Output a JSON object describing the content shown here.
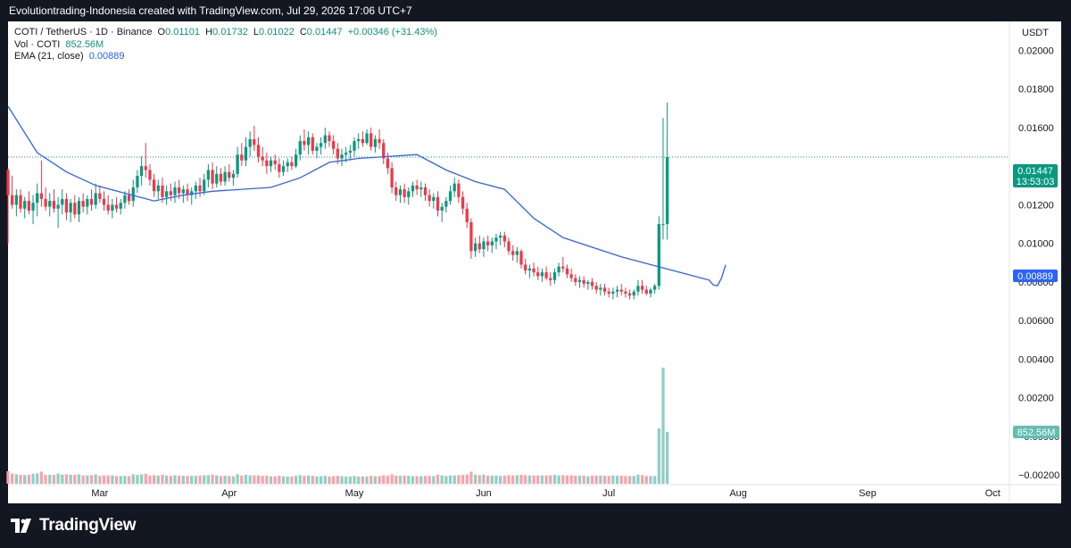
{
  "header": {
    "attribution": "Evolutiontrading-Indonesia created with TradingView.com, Jul 29, 2026 17:06 UTC+7"
  },
  "legend": {
    "symbol": "COTI / TetherUS · 1D · Binance",
    "o_label": "O",
    "o_value": "0.01101",
    "h_label": "H",
    "h_value": "0.01732",
    "l_label": "L",
    "l_value": "0.01022",
    "c_label": "C",
    "c_value": "0.01447",
    "change": "+0.00346 (+31.43%)",
    "vol_label": "Vol · COTI",
    "vol_value": "852.56M",
    "ema_label": "EMA (21, close)",
    "ema_value": "0.00889"
  },
  "price_axis": {
    "currency": "USDT",
    "ticks": [
      "0.02000",
      "0.01800",
      "0.01600",
      "0.01200",
      "0.01000",
      "0.00800",
      "0.00600",
      "0.00400",
      "0.00200",
      "−0.00000",
      "−0.00200"
    ]
  },
  "badges": {
    "price": "0.01447",
    "countdown": "13:53:03",
    "ema": "0.00889",
    "volume": "852.56M"
  },
  "time_axis": {
    "labels": [
      "Mar",
      "Apr",
      "May",
      "Jun",
      "Jul",
      "Aug",
      "Sep",
      "Oct"
    ]
  },
  "brand": {
    "name": "TradingView"
  },
  "colors": {
    "up": "#089981",
    "down": "#f23645",
    "ema": "#2962ff",
    "vol_up": "#8fcfc4",
    "vol_down": "#f8a3aa",
    "background": "#131722"
  },
  "chart_data": {
    "type": "candlestick",
    "symbol": "COTI / TetherUS",
    "interval": "1D",
    "exchange": "Binance",
    "y_range": [
      -0.0025,
      0.0215
    ],
    "x_range": [
      "2026-02-07",
      "2026-10-05"
    ],
    "series": [
      {
        "name": "EMA (21, close)",
        "type": "line",
        "points": [
          [
            "2026-02-07",
            0.0171
          ],
          [
            "2026-02-14",
            0.0147
          ],
          [
            "2026-02-21",
            0.0137
          ],
          [
            "2026-02-28",
            0.013
          ],
          [
            "2026-03-07",
            0.0126
          ],
          [
            "2026-03-14",
            0.0122
          ],
          [
            "2026-03-21",
            0.0125
          ],
          [
            "2026-03-28",
            0.0127
          ],
          [
            "2026-04-04",
            0.0128
          ],
          [
            "2026-04-11",
            0.0129
          ],
          [
            "2026-04-18",
            0.0134
          ],
          [
            "2026-04-25",
            0.0142
          ],
          [
            "2026-05-02",
            0.0144
          ],
          [
            "2026-05-09",
            0.0145
          ],
          [
            "2026-05-16",
            0.0146
          ],
          [
            "2026-05-23",
            0.0138
          ],
          [
            "2026-05-30",
            0.0132
          ],
          [
            "2026-06-06",
            0.0128
          ],
          [
            "2026-06-13",
            0.0113
          ],
          [
            "2026-06-20",
            0.0103
          ],
          [
            "2026-06-27",
            0.0098
          ],
          [
            "2026-07-04",
            0.0093
          ],
          [
            "2026-07-11",
            0.0089
          ],
          [
            "2026-07-18",
            0.0085
          ],
          [
            "2026-07-25",
            0.0081
          ],
          [
            "2026-07-26",
            0.00785
          ],
          [
            "2026-07-27",
            0.0078
          ],
          [
            "2026-07-28",
            0.0082
          ],
          [
            "2026-07-29",
            0.00889
          ]
        ]
      },
      {
        "name": "Vol · COTI",
        "type": "bar",
        "last": 852.56
      }
    ],
    "candles": [
      [
        "2026-02-07",
        0.0138,
        0.0139,
        0.01,
        0.0125
      ],
      [
        "2026-02-08",
        0.0125,
        0.0135,
        0.0118,
        0.012
      ],
      [
        "2026-02-09",
        0.012,
        0.0128,
        0.0114,
        0.0125
      ],
      [
        "2026-02-10",
        0.0125,
        0.0128,
        0.0116,
        0.0118
      ],
      [
        "2026-02-11",
        0.0118,
        0.0124,
        0.0113,
        0.0122
      ],
      [
        "2026-02-12",
        0.0122,
        0.0127,
        0.0115,
        0.0117
      ],
      [
        "2026-02-13",
        0.0117,
        0.0125,
        0.011,
        0.0121
      ],
      [
        "2026-02-14",
        0.0121,
        0.0131,
        0.0114,
        0.0126
      ],
      [
        "2026-02-15",
        0.0126,
        0.0143,
        0.0119,
        0.0123
      ],
      [
        "2026-02-16",
        0.0123,
        0.0129,
        0.0117,
        0.0119
      ],
      [
        "2026-02-17",
        0.0119,
        0.0126,
        0.0114,
        0.0122
      ],
      [
        "2026-02-18",
        0.0122,
        0.0128,
        0.0116,
        0.0118
      ],
      [
        "2026-02-19",
        0.0118,
        0.0124,
        0.0108,
        0.012
      ],
      [
        "2026-02-20",
        0.012,
        0.0128,
        0.0115,
        0.0123
      ],
      [
        "2026-02-21",
        0.0123,
        0.0126,
        0.0112,
        0.0116
      ],
      [
        "2026-02-22",
        0.0116,
        0.0123,
        0.0111,
        0.0121
      ],
      [
        "2026-02-23",
        0.0121,
        0.0125,
        0.0113,
        0.0115
      ],
      [
        "2026-02-24",
        0.0115,
        0.0124,
        0.0111,
        0.0122
      ],
      [
        "2026-02-25",
        0.0122,
        0.0126,
        0.0116,
        0.0119
      ],
      [
        "2026-02-26",
        0.0119,
        0.0125,
        0.0115,
        0.0123
      ],
      [
        "2026-02-27",
        0.0123,
        0.0128,
        0.0117,
        0.012
      ],
      [
        "2026-02-28",
        0.012,
        0.0131,
        0.0118,
        0.0126
      ],
      [
        "2026-03-01",
        0.0126,
        0.013,
        0.0121,
        0.0123
      ],
      [
        "2026-03-02",
        0.0123,
        0.0127,
        0.0117,
        0.012
      ],
      [
        "2026-03-03",
        0.012,
        0.0125,
        0.0115,
        0.0117
      ],
      [
        "2026-03-04",
        0.0117,
        0.0123,
        0.0113,
        0.012
      ],
      [
        "2026-03-05",
        0.012,
        0.0124,
        0.0116,
        0.0118
      ],
      [
        "2026-03-06",
        0.0118,
        0.0123,
        0.0115,
        0.0121
      ],
      [
        "2026-03-07",
        0.0121,
        0.0127,
        0.0118,
        0.0125
      ],
      [
        "2026-03-08",
        0.0125,
        0.0128,
        0.012,
        0.0122
      ],
      [
        "2026-03-09",
        0.0122,
        0.0133,
        0.0119,
        0.0129
      ],
      [
        "2026-03-10",
        0.0129,
        0.0138,
        0.0126,
        0.0135
      ],
      [
        "2026-03-11",
        0.0135,
        0.0145,
        0.013,
        0.014
      ],
      [
        "2026-03-12",
        0.014,
        0.0152,
        0.0134,
        0.0138
      ],
      [
        "2026-03-13",
        0.0138,
        0.0141,
        0.013,
        0.0133
      ],
      [
        "2026-03-14",
        0.0133,
        0.0136,
        0.0124,
        0.0127
      ],
      [
        "2026-03-15",
        0.0127,
        0.0133,
        0.0123,
        0.013
      ],
      [
        "2026-03-16",
        0.013,
        0.0134,
        0.0121,
        0.0124
      ],
      [
        "2026-03-17",
        0.0124,
        0.013,
        0.012,
        0.0127
      ],
      [
        "2026-03-18",
        0.0127,
        0.0131,
        0.0122,
        0.0125
      ],
      [
        "2026-03-19",
        0.0125,
        0.0132,
        0.0121,
        0.0129
      ],
      [
        "2026-03-20",
        0.0129,
        0.0133,
        0.0123,
        0.0126
      ],
      [
        "2026-03-21",
        0.0126,
        0.013,
        0.0121,
        0.0128
      ],
      [
        "2026-03-22",
        0.0128,
        0.0131,
        0.0122,
        0.0125
      ],
      [
        "2026-03-23",
        0.0125,
        0.0129,
        0.012,
        0.0127
      ],
      [
        "2026-03-24",
        0.0127,
        0.0132,
        0.0123,
        0.013
      ],
      [
        "2026-03-25",
        0.013,
        0.0134,
        0.0124,
        0.0127
      ],
      [
        "2026-03-26",
        0.0127,
        0.0136,
        0.0125,
        0.0133
      ],
      [
        "2026-03-27",
        0.0133,
        0.0141,
        0.0129,
        0.0138
      ],
      [
        "2026-03-28",
        0.0138,
        0.0142,
        0.0128,
        0.0131
      ],
      [
        "2026-03-29",
        0.0131,
        0.014,
        0.0129,
        0.0136
      ],
      [
        "2026-03-30",
        0.0136,
        0.0139,
        0.013,
        0.0132
      ],
      [
        "2026-03-31",
        0.0132,
        0.014,
        0.013,
        0.0137
      ],
      [
        "2026-04-01",
        0.0137,
        0.0141,
        0.0132,
        0.0134
      ],
      [
        "2026-04-02",
        0.0134,
        0.0138,
        0.013,
        0.0136
      ],
      [
        "2026-04-03",
        0.0136,
        0.015,
        0.0134,
        0.0146
      ],
      [
        "2026-04-04",
        0.0146,
        0.0152,
        0.014,
        0.0143
      ],
      [
        "2026-04-05",
        0.0143,
        0.0155,
        0.014,
        0.015
      ],
      [
        "2026-04-06",
        0.015,
        0.0158,
        0.0145,
        0.0154
      ],
      [
        "2026-04-07",
        0.0154,
        0.0161,
        0.0148,
        0.0151
      ],
      [
        "2026-04-08",
        0.0151,
        0.0155,
        0.0142,
        0.0145
      ],
      [
        "2026-04-09",
        0.0145,
        0.015,
        0.014,
        0.0143
      ],
      [
        "2026-04-10",
        0.0143,
        0.0147,
        0.0136,
        0.014
      ],
      [
        "2026-04-11",
        0.014,
        0.0145,
        0.0137,
        0.0143
      ],
      [
        "2026-04-12",
        0.0143,
        0.0146,
        0.0138,
        0.0141
      ],
      [
        "2026-04-13",
        0.0141,
        0.0144,
        0.0134,
        0.0137
      ],
      [
        "2026-04-14",
        0.0137,
        0.0143,
        0.0135,
        0.014
      ],
      [
        "2026-04-15",
        0.014,
        0.0144,
        0.0137,
        0.0142
      ],
      [
        "2026-04-16",
        0.0142,
        0.0145,
        0.0138,
        0.014
      ],
      [
        "2026-04-17",
        0.014,
        0.0149,
        0.0139,
        0.0146
      ],
      [
        "2026-04-18",
        0.0146,
        0.0156,
        0.0143,
        0.0153
      ],
      [
        "2026-04-19",
        0.0153,
        0.0159,
        0.0148,
        0.0151
      ],
      [
        "2026-04-20",
        0.0151,
        0.0158,
        0.0146,
        0.0155
      ],
      [
        "2026-04-21",
        0.0155,
        0.0157,
        0.0146,
        0.0148
      ],
      [
        "2026-04-22",
        0.0148,
        0.0152,
        0.0144,
        0.015
      ],
      [
        "2026-04-23",
        0.015,
        0.0155,
        0.0146,
        0.0152
      ],
      [
        "2026-04-24",
        0.0152,
        0.016,
        0.0149,
        0.0156
      ],
      [
        "2026-04-25",
        0.0156,
        0.0158,
        0.015,
        0.0153
      ],
      [
        "2026-04-26",
        0.0153,
        0.0156,
        0.0146,
        0.0149
      ],
      [
        "2026-04-27",
        0.0149,
        0.0152,
        0.0141,
        0.0144
      ],
      [
        "2026-04-28",
        0.0144,
        0.0149,
        0.014,
        0.0146
      ],
      [
        "2026-04-29",
        0.0146,
        0.015,
        0.0142,
        0.0147
      ],
      [
        "2026-04-30",
        0.0147,
        0.0151,
        0.0143,
        0.0148
      ],
      [
        "2026-05-01",
        0.0148,
        0.0155,
        0.0145,
        0.0153
      ],
      [
        "2026-05-02",
        0.0153,
        0.0157,
        0.0149,
        0.0154
      ],
      [
        "2026-05-03",
        0.0154,
        0.0158,
        0.015,
        0.0152
      ],
      [
        "2026-05-04",
        0.0152,
        0.0159,
        0.0151,
        0.0157
      ],
      [
        "2026-05-05",
        0.0157,
        0.016,
        0.0148,
        0.015
      ],
      [
        "2026-05-06",
        0.015,
        0.0156,
        0.0147,
        0.0154
      ],
      [
        "2026-05-07",
        0.0154,
        0.0159,
        0.0149,
        0.0152
      ],
      [
        "2026-05-08",
        0.0152,
        0.0154,
        0.0141,
        0.0144
      ],
      [
        "2026-05-09",
        0.0144,
        0.0147,
        0.0136,
        0.0139
      ],
      [
        "2026-05-10",
        0.0139,
        0.0142,
        0.0126,
        0.0129
      ],
      [
        "2026-05-11",
        0.0129,
        0.0132,
        0.0122,
        0.0125
      ],
      [
        "2026-05-12",
        0.0125,
        0.013,
        0.0121,
        0.0128
      ],
      [
        "2026-05-13",
        0.0128,
        0.0131,
        0.0121,
        0.0124
      ],
      [
        "2026-05-14",
        0.0124,
        0.0129,
        0.012,
        0.0127
      ],
      [
        "2026-05-15",
        0.0127,
        0.0132,
        0.0124,
        0.013
      ],
      [
        "2026-05-16",
        0.013,
        0.0133,
        0.0125,
        0.0128
      ],
      [
        "2026-05-17",
        0.0128,
        0.0132,
        0.0124,
        0.0129
      ],
      [
        "2026-05-18",
        0.0129,
        0.0131,
        0.0122,
        0.0125
      ],
      [
        "2026-05-19",
        0.0125,
        0.0128,
        0.0119,
        0.0122
      ],
      [
        "2026-05-20",
        0.0122,
        0.0126,
        0.0118,
        0.0124
      ],
      [
        "2026-05-21",
        0.0124,
        0.0127,
        0.0114,
        0.0117
      ],
      [
        "2026-05-22",
        0.0117,
        0.0121,
        0.0111,
        0.0119
      ],
      [
        "2026-05-23",
        0.0119,
        0.0124,
        0.0116,
        0.0122
      ],
      [
        "2026-05-24",
        0.0122,
        0.013,
        0.012,
        0.0127
      ],
      [
        "2026-05-25",
        0.0127,
        0.0134,
        0.0124,
        0.0131
      ],
      [
        "2026-05-26",
        0.0131,
        0.0133,
        0.0121,
        0.0124
      ],
      [
        "2026-05-27",
        0.0124,
        0.0127,
        0.0115,
        0.0118
      ],
      [
        "2026-05-28",
        0.0118,
        0.0121,
        0.0108,
        0.0111
      ],
      [
        "2026-05-29",
        0.0111,
        0.0113,
        0.0092,
        0.0096
      ],
      [
        "2026-05-30",
        0.0096,
        0.0103,
        0.0093,
        0.01
      ],
      [
        "2026-05-31",
        0.01,
        0.0104,
        0.0095,
        0.0097
      ],
      [
        "2026-06-01",
        0.0097,
        0.0103,
        0.0093,
        0.0101
      ],
      [
        "2026-06-02",
        0.0101,
        0.0104,
        0.0096,
        0.0099
      ],
      [
        "2026-06-03",
        0.0099,
        0.0103,
        0.0095,
        0.0101
      ],
      [
        "2026-06-04",
        0.0101,
        0.0105,
        0.0097,
        0.0103
      ],
      [
        "2026-06-05",
        0.0103,
        0.0106,
        0.0099,
        0.0104
      ],
      [
        "2026-06-06",
        0.0104,
        0.0106,
        0.0098,
        0.0101
      ],
      [
        "2026-06-07",
        0.0101,
        0.0103,
        0.0094,
        0.0096
      ],
      [
        "2026-06-08",
        0.0096,
        0.0099,
        0.0091,
        0.0094
      ],
      [
        "2026-06-09",
        0.0094,
        0.0098,
        0.009,
        0.0096
      ],
      [
        "2026-06-10",
        0.0096,
        0.0097,
        0.0087,
        0.0089
      ],
      [
        "2026-06-11",
        0.0089,
        0.0092,
        0.0084,
        0.0086
      ],
      [
        "2026-06-12",
        0.0086,
        0.0089,
        0.0082,
        0.0087
      ],
      [
        "2026-06-13",
        0.0087,
        0.009,
        0.0083,
        0.0085
      ],
      [
        "2026-06-14",
        0.0085,
        0.0088,
        0.0081,
        0.0083
      ],
      [
        "2026-06-15",
        0.0083,
        0.0087,
        0.008,
        0.0085
      ],
      [
        "2026-06-16",
        0.0085,
        0.0088,
        0.0081,
        0.0082
      ],
      [
        "2026-06-17",
        0.0082,
        0.0085,
        0.0078,
        0.0081
      ],
      [
        "2026-06-18",
        0.0081,
        0.0087,
        0.0079,
        0.0085
      ],
      [
        "2026-06-19",
        0.0085,
        0.009,
        0.0083,
        0.0088
      ],
      [
        "2026-06-20",
        0.0088,
        0.0093,
        0.0085,
        0.0087
      ],
      [
        "2026-06-21",
        0.0087,
        0.0089,
        0.0082,
        0.0084
      ],
      [
        "2026-06-22",
        0.0084,
        0.0087,
        0.008,
        0.0082
      ],
      [
        "2026-06-23",
        0.0082,
        0.0084,
        0.0078,
        0.008
      ],
      [
        "2026-06-24",
        0.008,
        0.0083,
        0.0077,
        0.0081
      ],
      [
        "2026-06-25",
        0.0081,
        0.0083,
        0.0077,
        0.0079
      ],
      [
        "2026-06-26",
        0.0079,
        0.0081,
        0.0076,
        0.008
      ],
      [
        "2026-06-27",
        0.008,
        0.0082,
        0.0076,
        0.0078
      ],
      [
        "2026-06-28",
        0.0078,
        0.008,
        0.0074,
        0.0076
      ],
      [
        "2026-06-29",
        0.0076,
        0.0079,
        0.0073,
        0.0077
      ],
      [
        "2026-06-30",
        0.0077,
        0.0079,
        0.0073,
        0.0075
      ],
      [
        "2026-07-01",
        0.0075,
        0.0077,
        0.0072,
        0.0074
      ],
      [
        "2026-07-02",
        0.0074,
        0.0077,
        0.0071,
        0.0075
      ],
      [
        "2026-07-03",
        0.0075,
        0.0078,
        0.0072,
        0.0076
      ],
      [
        "2026-07-04",
        0.0076,
        0.0079,
        0.0073,
        0.0075
      ],
      [
        "2026-07-05",
        0.0075,
        0.0077,
        0.0072,
        0.0074
      ],
      [
        "2026-07-06",
        0.0074,
        0.0076,
        0.0071,
        0.0073
      ],
      [
        "2026-07-07",
        0.0073,
        0.0076,
        0.0071,
        0.0075
      ],
      [
        "2026-07-08",
        0.0075,
        0.0081,
        0.0073,
        0.0078
      ],
      [
        "2026-07-09",
        0.0078,
        0.0081,
        0.0074,
        0.0076
      ],
      [
        "2026-07-10",
        0.0076,
        0.0078,
        0.0073,
        0.0074
      ],
      [
        "2026-07-11",
        0.0074,
        0.0077,
        0.0072,
        0.0076
      ],
      [
        "2026-07-12",
        0.0076,
        0.0079,
        0.0074,
        0.0078
      ],
      [
        "2026-07-13",
        0.0078,
        0.0114,
        0.0076,
        0.011
      ],
      [
        "2026-07-14",
        0.011,
        0.0165,
        0.0102,
        0.011
      ],
      [
        "2026-07-15",
        0.011,
        0.0173,
        0.0102,
        0.01447
      ]
    ]
  }
}
